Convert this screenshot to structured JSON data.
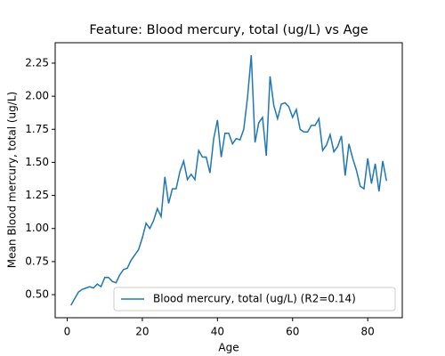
{
  "chart_data": {
    "type": "line",
    "title": "Feature: Blood mercury, total (ug/L) vs Age",
    "x_label": "Age",
    "y_label": "Mean Blood mercury, total (ug/L)",
    "x": [
      1,
      2,
      3,
      4,
      5,
      6,
      7,
      8,
      9,
      10,
      11,
      12,
      13,
      14,
      15,
      16,
      17,
      18,
      19,
      20,
      21,
      22,
      23,
      24,
      25,
      26,
      27,
      28,
      29,
      30,
      31,
      32,
      33,
      34,
      35,
      36,
      37,
      38,
      39,
      40,
      41,
      42,
      43,
      44,
      45,
      46,
      47,
      48,
      49,
      50,
      51,
      52,
      53,
      54,
      55,
      56,
      57,
      58,
      59,
      60,
      61,
      62,
      63,
      64,
      65,
      66,
      67,
      68,
      69,
      70,
      71,
      72,
      73,
      74,
      75,
      76,
      77,
      78,
      79,
      80,
      81,
      82,
      83,
      84,
      85
    ],
    "series": [
      {
        "name": "Blood mercury, total (ug/L) (R2=0.14)",
        "color": "#1f77b4",
        "values": [
          0.42,
          0.47,
          0.52,
          0.54,
          0.55,
          0.56,
          0.55,
          0.58,
          0.56,
          0.63,
          0.63,
          0.6,
          0.59,
          0.65,
          0.69,
          0.7,
          0.76,
          0.8,
          0.84,
          0.93,
          1.04,
          1.0,
          1.06,
          1.15,
          1.09,
          1.39,
          1.19,
          1.3,
          1.3,
          1.43,
          1.51,
          1.37,
          1.41,
          1.37,
          1.59,
          1.54,
          1.54,
          1.42,
          1.68,
          1.82,
          1.54,
          1.72,
          1.72,
          1.64,
          1.68,
          1.67,
          1.75,
          1.99,
          2.31,
          1.65,
          1.8,
          1.84,
          1.55,
          2.15,
          1.93,
          1.83,
          1.94,
          1.95,
          1.92,
          1.84,
          1.9,
          1.75,
          1.73,
          1.73,
          1.78,
          1.78,
          1.83,
          1.59,
          1.63,
          1.71,
          1.58,
          1.62,
          1.7,
          1.4,
          1.64,
          1.53,
          1.44,
          1.32,
          1.3,
          1.53,
          1.34,
          1.49,
          1.28,
          1.51,
          1.36
        ]
      }
    ],
    "xlim": [
      -3.2,
      89.2
    ],
    "xticks": [
      0,
      20,
      40,
      60,
      80
    ],
    "ylim": [
      0.3255,
      2.4045
    ],
    "yticks": [
      {
        "value": 0.5,
        "label": "0.50"
      },
      0.75,
      {
        "value": 1.0,
        "label": "1.00"
      },
      1.25,
      {
        "value": 1.5,
        "label": "1.50"
      },
      1.75,
      {
        "value": 2.0,
        "label": "2.00"
      },
      2.25
    ],
    "legend": "lower right",
    "grid": false
  }
}
